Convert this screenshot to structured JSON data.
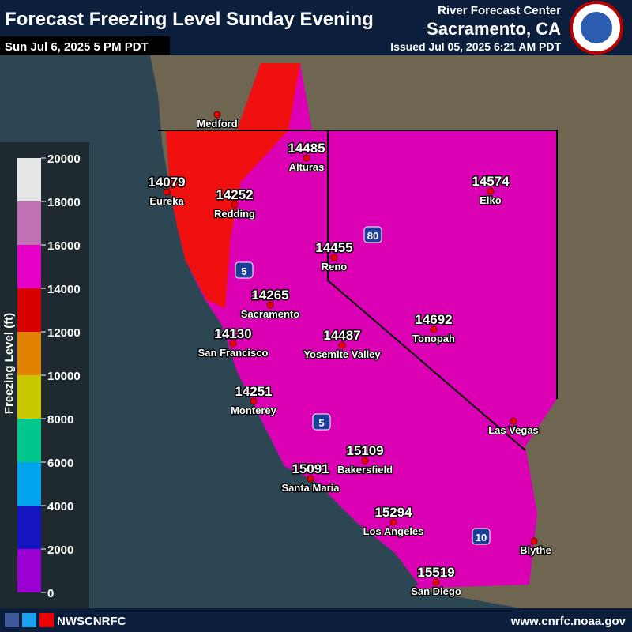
{
  "header": {
    "title": "Forecast Freezing Level Sunday Evening",
    "valid": "Sun Jul 6, 2025 5 PM PDT",
    "agency": "River Forecast Center",
    "office": "Sacramento, CA",
    "issued": "Issued Jul 05, 2025 6:21 AM PDT"
  },
  "legend": {
    "title": "Freezing Level (ft)",
    "ticks": [
      0,
      2000,
      4000,
      6000,
      8000,
      10000,
      12000,
      14000,
      16000,
      18000,
      20000
    ],
    "colors": [
      "#9a00d2",
      "#1414c0",
      "#00a4ee",
      "#00c88c",
      "#c8c800",
      "#e08200",
      "#d80000",
      "#e400c4",
      "#c070b4",
      "#e6e6e6"
    ]
  },
  "cities": [
    {
      "name": "Medford"
    },
    {
      "name": "Alturas",
      "value": "14485"
    },
    {
      "name": "Eureka",
      "value": "14079"
    },
    {
      "name": "Redding",
      "value": "14252"
    },
    {
      "name": "Elko",
      "value": "14574"
    },
    {
      "name": "Reno",
      "value": "14455"
    },
    {
      "name": "Sacramento",
      "value": "14265"
    },
    {
      "name": "Tonopah",
      "value": "14692"
    },
    {
      "name": "San Francisco",
      "value": "14130"
    },
    {
      "name": "Yosemite Valley",
      "value": "14487"
    },
    {
      "name": "Monterey",
      "value": "14251"
    },
    {
      "name": "Las Vegas"
    },
    {
      "name": "Bakersfield",
      "value": "15109"
    },
    {
      "name": "Santa Maria",
      "value": "15091"
    },
    {
      "name": "Los Angeles",
      "value": "15294"
    },
    {
      "name": "Blythe"
    },
    {
      "name": "San Diego",
      "value": "15519"
    }
  ],
  "highways": [
    "80",
    "5",
    "5",
    "10"
  ],
  "footer": {
    "social": "NWSCNRFC",
    "url": "www.cnrfc.noaa.gov"
  }
}
